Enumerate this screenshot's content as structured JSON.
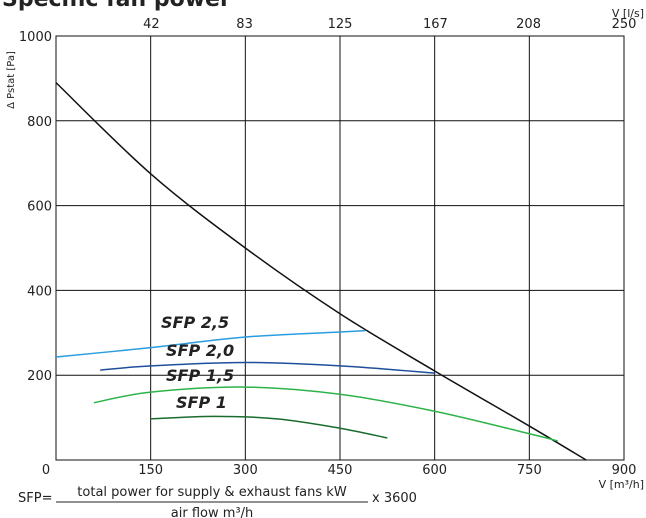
{
  "chart_data": {
    "type": "line",
    "title": "Specific fan power",
    "ylabel": "Δ Pstat [Pa]",
    "xlabel": "V [m³/h]",
    "x2label": "V [l/s]",
    "xlim": [
      0,
      900
    ],
    "xticks": [
      0,
      150,
      300,
      450,
      600,
      750,
      900
    ],
    "x2lim": [
      0,
      250
    ],
    "x2ticks": [
      42,
      83,
      125,
      167,
      208,
      250
    ],
    "ylim": [
      0,
      1000
    ],
    "yticks": [
      200,
      400,
      600,
      800,
      1000
    ],
    "grid": true,
    "series": [
      {
        "color": "#111111",
        "x": [
          0,
          150,
          300,
          450,
          600,
          750,
          840
        ],
        "values": [
          890,
          675,
          500,
          345,
          210,
          80,
          0
        ]
      },
      {
        "name": "SFP 2,5",
        "color": "#2a9de0",
        "x": [
          0,
          150,
          300,
          450,
          490
        ],
        "values": [
          243,
          265,
          290,
          302,
          305
        ]
      },
      {
        "name": "SFP 2,0",
        "color": "#1f4e9c",
        "x": [
          70,
          150,
          300,
          450,
          600
        ],
        "values": [
          212,
          222,
          230,
          222,
          205
        ]
      },
      {
        "name": "SFP 1,5",
        "color": "#2db34a",
        "x": [
          60,
          150,
          300,
          450,
          600,
          750,
          795
        ],
        "values": [
          135,
          160,
          172,
          155,
          115,
          62,
          45
        ]
      },
      {
        "name": "SFP 1",
        "color": "#1a6b2d",
        "x": [
          150,
          250,
          350,
          450,
          525
        ],
        "values": [
          97,
          103,
          97,
          75,
          52
        ]
      }
    ],
    "formula": {
      "prefix": "SFP=",
      "numerator": "total power for supply & exhaust fans kW",
      "denominator": "air flow m³/h",
      "suffix": "x 3600"
    }
  }
}
